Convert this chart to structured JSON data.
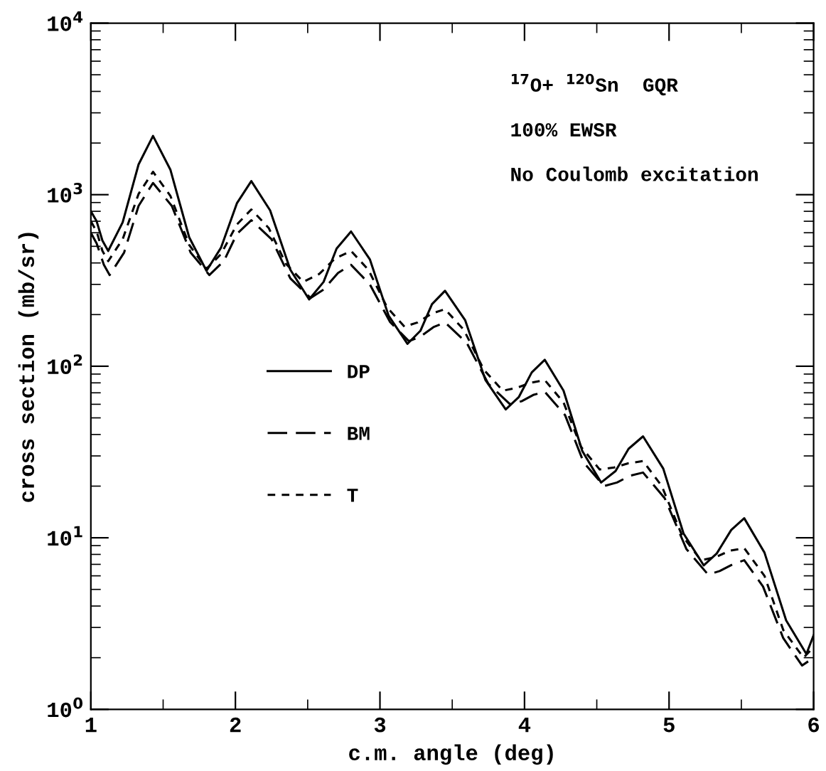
{
  "chart_data": {
    "type": "line",
    "xlabel": "c.m. angle (deg)",
    "ylabel": "cross section (mb/sr)",
    "annotations": [
      "$^{17}$O+ $^{120}$Sn  GQR",
      "100% EWSR",
      "No Coulomb excitation"
    ],
    "log": "y",
    "xlim": [
      1,
      6
    ],
    "ylim": [
      1,
      10000
    ],
    "xticks": [
      1,
      2,
      3,
      4,
      5,
      6
    ],
    "yticks": [
      {
        "value": 1,
        "label": "10$^{0}$"
      },
      {
        "value": 10,
        "label": "10$^{1}$"
      },
      {
        "value": 100,
        "label": "10$^{2}$"
      },
      {
        "value": 1000,
        "label": "10$^{3}$"
      },
      {
        "value": 10000,
        "label": "10$^{4}$"
      }
    ],
    "grid": false,
    "legend": "left",
    "marker": "none",
    "series": [
      {
        "name": "DP",
        "color": "#000000",
        "line_style": "solid",
        "x": [
          1.0,
          1.04,
          1.08,
          1.12,
          1.22,
          1.33,
          1.43,
          1.55,
          1.68,
          1.8,
          1.9,
          2.01,
          2.11,
          2.24,
          2.38,
          2.51,
          2.61,
          2.7,
          2.8,
          2.93,
          3.06,
          3.19,
          3.28,
          3.36,
          3.45,
          3.59,
          3.73,
          3.87,
          3.96,
          4.05,
          4.14,
          4.27,
          4.4,
          4.53,
          4.63,
          4.72,
          4.82,
          4.96,
          5.1,
          5.24,
          5.33,
          5.43,
          5.52,
          5.66,
          5.81,
          5.95,
          6.0
        ],
        "values": [
          800,
          700,
          540,
          470,
          690,
          1500,
          2200,
          1400,
          565,
          360,
          490,
          890,
          1200,
          810,
          365,
          245,
          310,
          485,
          610,
          420,
          197,
          135,
          161,
          230,
          275,
          185,
          83,
          56,
          66,
          92,
          109,
          72,
          32,
          21,
          24.5,
          33,
          39,
          25.3,
          10.6,
          6.9,
          8.1,
          11.1,
          13,
          8.2,
          3.3,
          2.1,
          2.7
        ]
      },
      {
        "name": "BM",
        "color": "#000000",
        "line_style": "dashed",
        "x": [
          1.0,
          1.04,
          1.09,
          1.13,
          1.23,
          1.33,
          1.43,
          1.56,
          1.69,
          1.82,
          1.92,
          2.01,
          2.11,
          2.25,
          2.38,
          2.52,
          2.61,
          2.71,
          2.8,
          2.93,
          3.07,
          3.2,
          3.28,
          3.37,
          3.45,
          3.6,
          3.75,
          3.9,
          3.98,
          4.06,
          4.14,
          4.28,
          4.41,
          4.55,
          4.64,
          4.73,
          4.82,
          4.97,
          5.12,
          5.27,
          5.35,
          5.44,
          5.52,
          5.65,
          5.79,
          5.92,
          6.0
        ],
        "values": [
          600,
          520,
          390,
          340,
          460,
          860,
          1170,
          860,
          460,
          340,
          410,
          590,
          710,
          550,
          325,
          250,
          280,
          350,
          390,
          300,
          181,
          140,
          149,
          169,
          180,
          137,
          79,
          60,
          62.5,
          68,
          71,
          52,
          27.4,
          20,
          21,
          23,
          24,
          17,
          8.6,
          6.1,
          6.4,
          7.0,
          7.4,
          5.2,
          2.6,
          1.8,
          2.0
        ]
      },
      {
        "name": "T",
        "color": "#000000",
        "line_style": "dotted",
        "x": [
          1.0,
          1.04,
          1.08,
          1.12,
          1.22,
          1.33,
          1.43,
          1.55,
          1.68,
          1.8,
          1.9,
          2.01,
          2.11,
          2.23,
          2.35,
          2.47,
          2.58,
          2.69,
          2.8,
          2.92,
          3.05,
          3.17,
          3.26,
          3.36,
          3.45,
          3.58,
          3.72,
          3.85,
          3.95,
          4.04,
          4.14,
          4.27,
          4.39,
          4.52,
          4.62,
          4.72,
          4.82,
          4.95,
          5.09,
          5.22,
          5.32,
          5.42,
          5.52,
          5.66,
          5.79,
          5.93,
          6.0
        ],
        "values": [
          700,
          610,
          470,
          410,
          550,
          1010,
          1360,
          985,
          510,
          370,
          450,
          670,
          820,
          640,
          395,
          310,
          345,
          425,
          470,
          365,
          220,
          170,
          180,
          203,
          215,
          163,
          95,
          72,
          75,
          80,
          83,
          61.5,
          34,
          25,
          25.7,
          27.2,
          28,
          20,
          10.3,
          7.4,
          7.7,
          8.4,
          8.7,
          6.0,
          2.9,
          2.0,
          2.3
        ]
      }
    ]
  }
}
